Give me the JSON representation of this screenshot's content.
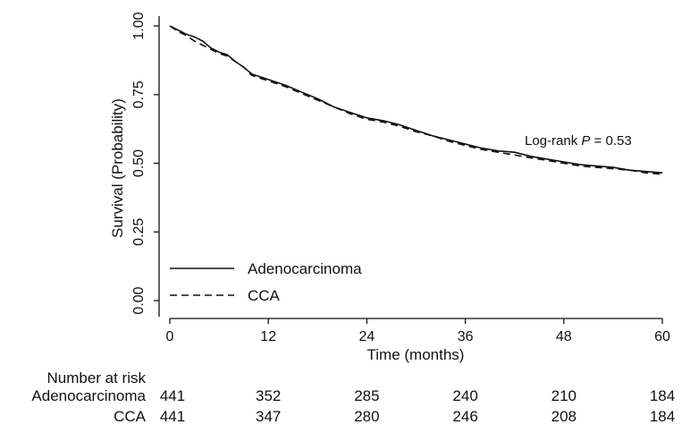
{
  "chart_data": {
    "type": "line",
    "title": "",
    "xlabel": "Time (months)",
    "ylabel": "Survival (Probability)",
    "xlim": [
      0,
      60
    ],
    "ylim": [
      0,
      1
    ],
    "xticks": [
      0,
      12,
      24,
      36,
      48,
      60
    ],
    "yticks": [
      "0.00",
      "0.25",
      "0.50",
      "0.75",
      "1.00"
    ],
    "grid": false,
    "legend_position": "bottom-left",
    "annotation": {
      "prefix": "Log-rank ",
      "italic": "P",
      "suffix": " = 0.53"
    },
    "series": [
      {
        "name": "Adenocarcinoma",
        "style": "solid",
        "x": [
          0,
          1,
          2,
          3,
          4,
          5,
          6,
          7,
          8,
          9,
          10,
          12,
          14,
          16,
          18,
          20,
          22,
          24,
          26,
          28,
          30,
          32,
          34,
          36,
          38,
          40,
          42,
          44,
          46,
          48,
          50,
          52,
          54,
          56,
          58,
          60
        ],
        "y": [
          1.0,
          0.985,
          0.97,
          0.96,
          0.945,
          0.92,
          0.905,
          0.895,
          0.87,
          0.85,
          0.825,
          0.805,
          0.785,
          0.76,
          0.735,
          0.705,
          0.685,
          0.665,
          0.655,
          0.64,
          0.62,
          0.6,
          0.585,
          0.57,
          0.555,
          0.545,
          0.54,
          0.525,
          0.515,
          0.505,
          0.495,
          0.49,
          0.485,
          0.475,
          0.47,
          0.465
        ]
      },
      {
        "name": "CCA",
        "style": "dashed",
        "x": [
          0,
          1,
          2,
          3,
          4,
          5,
          6,
          7,
          8,
          9,
          10,
          12,
          14,
          16,
          18,
          20,
          22,
          24,
          26,
          28,
          30,
          32,
          34,
          36,
          38,
          40,
          42,
          44,
          46,
          48,
          50,
          52,
          54,
          56,
          58,
          60
        ],
        "y": [
          1.0,
          0.98,
          0.965,
          0.945,
          0.93,
          0.915,
          0.9,
          0.89,
          0.87,
          0.85,
          0.82,
          0.8,
          0.78,
          0.755,
          0.73,
          0.705,
          0.68,
          0.66,
          0.65,
          0.635,
          0.615,
          0.6,
          0.58,
          0.565,
          0.55,
          0.54,
          0.53,
          0.52,
          0.51,
          0.5,
          0.49,
          0.485,
          0.48,
          0.475,
          0.465,
          0.46
        ]
      }
    ],
    "risk_table": {
      "header": "Number at risk",
      "rows": [
        {
          "label": "Adenocarcinoma",
          "values": [
            "441",
            "352",
            "285",
            "240",
            "210",
            "184"
          ]
        },
        {
          "label": "CCA",
          "values": [
            "441",
            "347",
            "280",
            "246",
            "208",
            "184"
          ]
        }
      ]
    }
  }
}
